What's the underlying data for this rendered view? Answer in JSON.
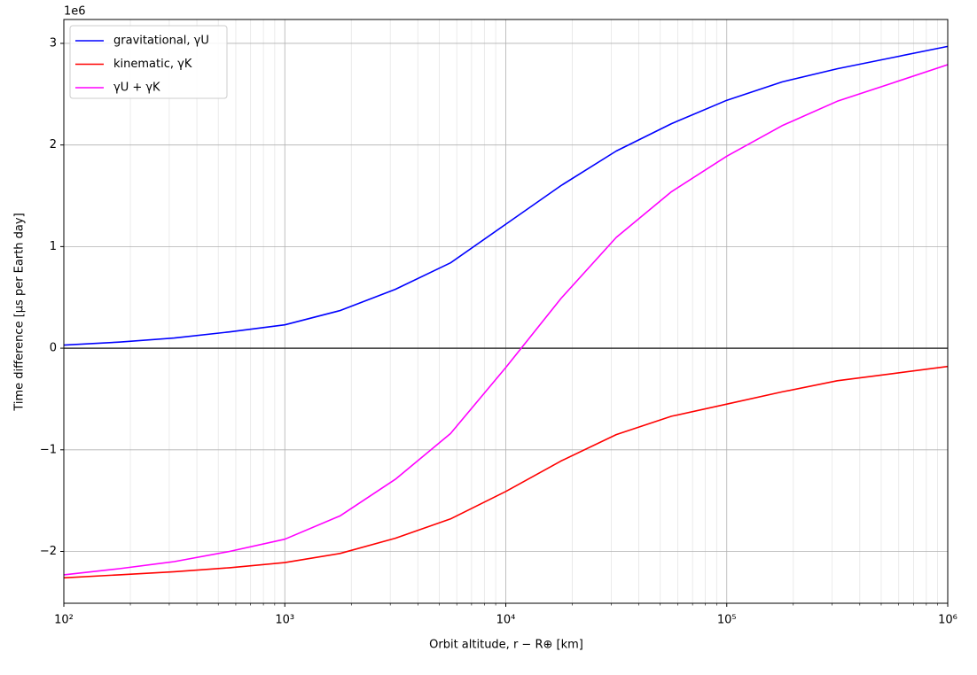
{
  "chart_data": {
    "type": "line",
    "x_label": "Orbit altitude, r − R⊕ [km]",
    "y_label": "Time difference [μs per Earth day]",
    "y_offset_label": "1e6",
    "x": [
      100,
      178,
      316,
      562,
      1000,
      1778,
      3162,
      5623,
      10000,
      17783,
      31623,
      56234,
      100000,
      177828,
      316228,
      562341,
      1000000
    ],
    "series": [
      {
        "name": "gravitational, γU",
        "color": "#0000ff",
        "values": [
          0.03,
          0.06,
          0.1,
          0.16,
          0.23,
          0.37,
          0.58,
          0.84,
          1.22,
          1.6,
          1.94,
          2.21,
          2.44,
          2.62,
          2.75,
          2.86,
          2.97
        ]
      },
      {
        "name": "kinematic, γK",
        "color": "#ff0000",
        "values": [
          -2.26,
          -2.23,
          -2.2,
          -2.16,
          -2.11,
          -2.02,
          -1.87,
          -1.68,
          -1.41,
          -1.11,
          -0.85,
          -0.67,
          -0.55,
          -0.43,
          -0.32,
          -0.25,
          -0.18
        ]
      },
      {
        "name": "γU + γK",
        "color": "#ff00ff",
        "values": [
          -2.23,
          -2.17,
          -2.1,
          -2.0,
          -1.88,
          -1.65,
          -1.29,
          -0.84,
          -0.19,
          0.49,
          1.09,
          1.54,
          1.89,
          2.19,
          2.43,
          2.61,
          2.79
        ]
      }
    ],
    "x_log": true,
    "xlim": [
      100,
      1000000
    ],
    "xticks": [
      {
        "value": 100,
        "label": "10²"
      },
      {
        "value": 1000,
        "label": "10³"
      },
      {
        "value": 10000,
        "label": "10⁴"
      },
      {
        "value": 100000,
        "label": "10⁵"
      },
      {
        "value": 1000000,
        "label": "10⁶"
      }
    ],
    "xminorticks": [
      200,
      300,
      400,
      500,
      600,
      700,
      800,
      900,
      2000,
      3000,
      4000,
      5000,
      6000,
      7000,
      8000,
      9000,
      20000,
      30000,
      40000,
      50000,
      60000,
      70000,
      80000,
      90000,
      200000,
      300000,
      400000,
      500000,
      600000,
      700000,
      800000,
      900000
    ],
    "ylim": [
      -2.51,
      3.235
    ],
    "yticks": [
      {
        "value": -2,
        "label": "−2"
      },
      {
        "value": -1,
        "label": "−1"
      },
      0,
      1,
      2,
      3
    ],
    "hline": 0,
    "grid": true,
    "legend": "upper-left"
  }
}
